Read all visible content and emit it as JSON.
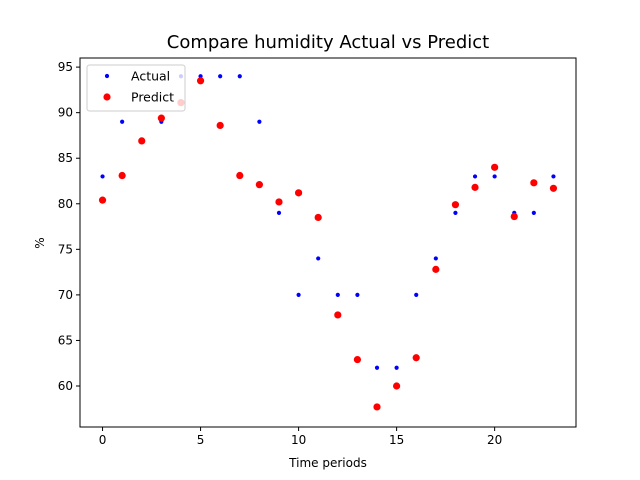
{
  "chart_data": {
    "type": "scatter",
    "title": "Compare humidity Actual vs Predict",
    "xlabel": "Time periods",
    "ylabel": "%",
    "xlim": [
      -1.15,
      24.15
    ],
    "ylim": [
      55.5,
      96.0
    ],
    "xticks": [
      0,
      5,
      10,
      15,
      20
    ],
    "yticks": [
      60,
      65,
      70,
      75,
      80,
      85,
      90,
      95
    ],
    "grid": false,
    "legend_position": "upper-left",
    "series": [
      {
        "name": "Actual",
        "color": "#0000ff",
        "marker": "small-dot",
        "x": [
          0,
          1,
          2,
          3,
          4,
          5,
          6,
          7,
          8,
          9,
          10,
          11,
          12,
          13,
          14,
          15,
          16,
          17,
          18,
          19,
          20,
          21,
          22,
          23
        ],
        "y": [
          83,
          89,
          87,
          89,
          94,
          94,
          94,
          94,
          89,
          79,
          70,
          74,
          70,
          70,
          62,
          62,
          70,
          74,
          79,
          83,
          83,
          79,
          79,
          83
        ]
      },
      {
        "name": "Predict",
        "color": "#ff0000",
        "marker": "large-dot",
        "x": [
          0,
          1,
          2,
          3,
          4,
          5,
          6,
          7,
          8,
          9,
          10,
          11,
          12,
          13,
          14,
          15,
          16,
          17,
          18,
          19,
          20,
          21,
          22,
          23
        ],
        "y": [
          80.4,
          83.1,
          86.9,
          89.4,
          91.1,
          93.5,
          88.6,
          83.1,
          82.1,
          80.2,
          81.2,
          78.5,
          67.8,
          62.9,
          57.7,
          60.0,
          63.1,
          72.8,
          79.9,
          81.8,
          84.0,
          78.6,
          82.3,
          81.7
        ]
      }
    ]
  }
}
